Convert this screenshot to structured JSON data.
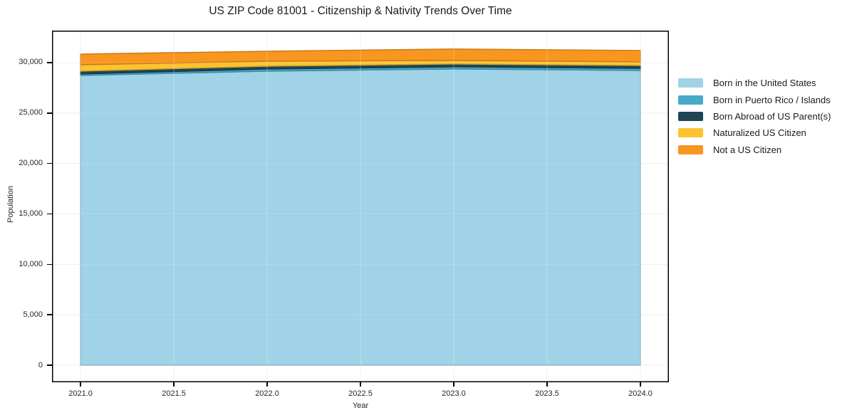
{
  "header": {
    "title": "US ZIP Code 81001 - Citizenship & Nativity Trends Over Time"
  },
  "axes": {
    "x_label": "Year",
    "y_label": "Population"
  },
  "colors": {
    "grid": "#ebebeb",
    "frame": "#000000",
    "tick_text": "#262626"
  },
  "chart_data": {
    "type": "area",
    "stacked": true,
    "title": "US ZIP Code 81001 - Citizenship & Nativity Trends Over Time",
    "xlabel": "Year",
    "ylabel": "Population",
    "x": [
      2021,
      2022,
      2023,
      2024
    ],
    "series": [
      {
        "name": "Born in the United States",
        "color": "#a0d2e8",
        "values": [
          28730,
          29160,
          29370,
          29225
        ]
      },
      {
        "name": "Born in Puerto Rico / Islands",
        "color": "#47abc8",
        "values": [
          150,
          210,
          220,
          215
        ]
      },
      {
        "name": "Born Abroad of US Parent(s)",
        "color": "#1f4557",
        "values": [
          280,
          280,
          280,
          280
        ]
      },
      {
        "name": "Naturalized US Citizen",
        "color": "#fdc430",
        "values": [
          630,
          490,
          350,
          350
        ]
      },
      {
        "name": "Not a US Citizen",
        "color": "#f8961f",
        "values": [
          1060,
          990,
          1130,
          1130
        ]
      }
    ],
    "xlim": [
      2020.847,
      2024.153
    ],
    "ylim": [
      -1694,
      33176
    ],
    "xticks": [
      2021.0,
      2021.5,
      2022.0,
      2022.5,
      2023.0,
      2023.5,
      2024.0
    ],
    "xtick_labels": [
      "2021.0",
      "2021.5",
      "2022.0",
      "2022.5",
      "2023.0",
      "2023.5",
      "2024.0"
    ],
    "yticks": [
      0,
      5000,
      10000,
      15000,
      20000,
      25000,
      30000
    ],
    "ytick_labels": [
      "0",
      "5,000",
      "10,000",
      "15,000",
      "20,000",
      "25,000",
      "30,000"
    ],
    "grid": true,
    "legend_position": "right"
  }
}
